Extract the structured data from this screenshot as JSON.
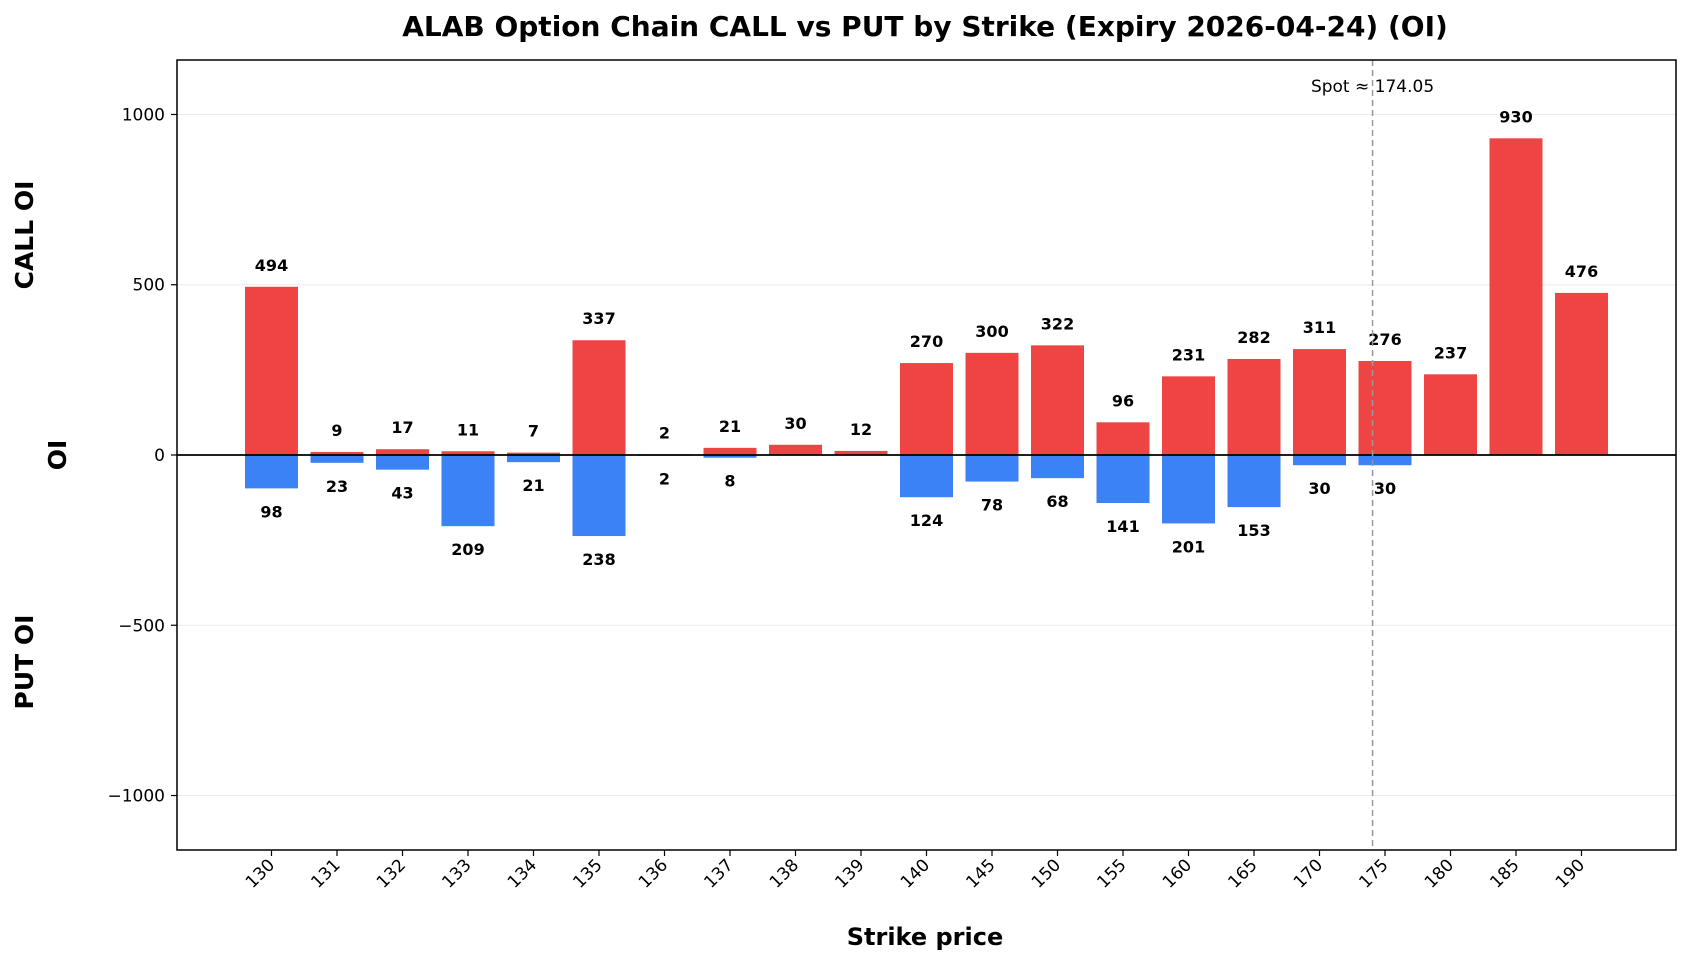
{
  "chart_data": {
    "type": "bar",
    "title": "ALAB Option Chain CALL vs PUT by Strike (Expiry 2026-04-24) (OI)",
    "xlabel": "Strike price",
    "ylabel": "OI",
    "upper_label": "CALL OI",
    "lower_label": "PUT OI",
    "ylim": [
      -1160,
      1160
    ],
    "yticks": [
      1000,
      500,
      0,
      -500,
      -1000
    ],
    "ytick_labels": [
      "1000",
      "500",
      "0",
      "−500",
      "−1000"
    ],
    "grid": true,
    "categories": [
      "130",
      "131",
      "132",
      "133",
      "134",
      "135",
      "136",
      "137",
      "138",
      "139",
      "140",
      "145",
      "150",
      "155",
      "160",
      "165",
      "170",
      "175",
      "180",
      "185",
      "190"
    ],
    "series": [
      {
        "name": "CALL",
        "color": "#ef4444",
        "values": [
          494,
          9,
          17,
          11,
          7,
          337,
          2,
          21,
          30,
          12,
          270,
          300,
          322,
          96,
          231,
          282,
          311,
          276,
          237,
          930,
          476
        ]
      },
      {
        "name": "PUT",
        "color": "#3b82f6",
        "values": [
          98,
          23,
          43,
          209,
          21,
          238,
          2,
          8,
          0,
          0,
          124,
          78,
          68,
          141,
          201,
          153,
          30,
          30,
          0,
          0,
          0
        ]
      }
    ],
    "put_labels": [
      "98",
      "23",
      "43",
      "209",
      "21",
      "238",
      "2",
      "8",
      "",
      "",
      "124",
      "78",
      "68",
      "141",
      "201",
      "153",
      "30",
      "30",
      "",
      "",
      ""
    ],
    "spot": {
      "label": "Spot ≈ 174.05",
      "value": 174.05
    }
  }
}
